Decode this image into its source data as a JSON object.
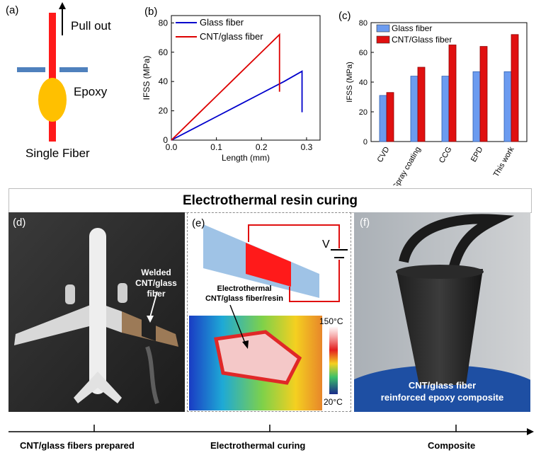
{
  "panel_a": {
    "letter": "(a)",
    "pull_out": "Pull out",
    "epoxy": "Epoxy",
    "single_fiber": "Single Fiber",
    "colors": {
      "fiber": "#ff1a1a",
      "plate": "#4f81bd",
      "epoxy": "#ffc000"
    }
  },
  "panel_b": {
    "letter": "(b)"
  },
  "panel_c": {
    "letter": "(c)"
  },
  "banner": {
    "title": "Electrothermal resin curing"
  },
  "panel_d": {
    "letter": "(d)",
    "annotation_line1": "Welded",
    "annotation_line2": "CNT/glass fiber"
  },
  "panel_e": {
    "letter": "(e)",
    "voltage": "V",
    "label_line1": "Electrothermal",
    "label_line2": "CNT/glass fiber/resin",
    "temp_max": "150°C",
    "temp_min": "20°C"
  },
  "panel_f": {
    "letter": "(f)",
    "caption_line1": "CNT/glass fiber",
    "caption_line2": "reinforced epoxy  composite"
  },
  "timeline": {
    "stages": [
      "CNT/glass fibers prepared",
      "Electrothermal curing",
      "Composite"
    ]
  },
  "chart_data": [
    {
      "type": "line",
      "xlabel": "Length (mm)",
      "ylabel": "IFSS (MPa)",
      "xlim": [
        0.0,
        0.33
      ],
      "ylim": [
        0,
        85
      ],
      "xticks": [
        0.0,
        0.1,
        0.2,
        0.3
      ],
      "xtick_labels": [
        "0.0",
        "0.1",
        "0.2",
        "0.3"
      ],
      "yticks": [
        0,
        20,
        40,
        60,
        80
      ],
      "legend": "top-left",
      "series": [
        {
          "name": "Glass fiber",
          "color": "#0000cc",
          "x": [
            0.0,
            0.05,
            0.1,
            0.15,
            0.2,
            0.25,
            0.29,
            0.29
          ],
          "y": [
            0,
            8,
            16,
            24,
            32,
            40,
            47,
            19
          ]
        },
        {
          "name": "CNT/glass fiber",
          "color": "#dd0000",
          "x": [
            0.0,
            0.05,
            0.1,
            0.15,
            0.2,
            0.24,
            0.24
          ],
          "y": [
            0,
            15,
            30,
            45,
            60,
            72,
            33
          ]
        }
      ]
    },
    {
      "type": "bar",
      "ylabel": "IFSS (MPa)",
      "ylim": [
        0,
        80
      ],
      "yticks": [
        0,
        20,
        40,
        60,
        80
      ],
      "legend": "top-left",
      "categories": [
        "CVD",
        "Spray coating",
        "CCG",
        "EPD",
        "This work"
      ],
      "series": [
        {
          "name": "Glass fiber",
          "color": "#6b9bf0",
          "values": [
            31,
            44,
            44,
            47,
            47
          ]
        },
        {
          "name": "CNT/Glass fiber",
          "color": "#e01010",
          "values": [
            33,
            50,
            65,
            64,
            72
          ]
        }
      ]
    }
  ]
}
